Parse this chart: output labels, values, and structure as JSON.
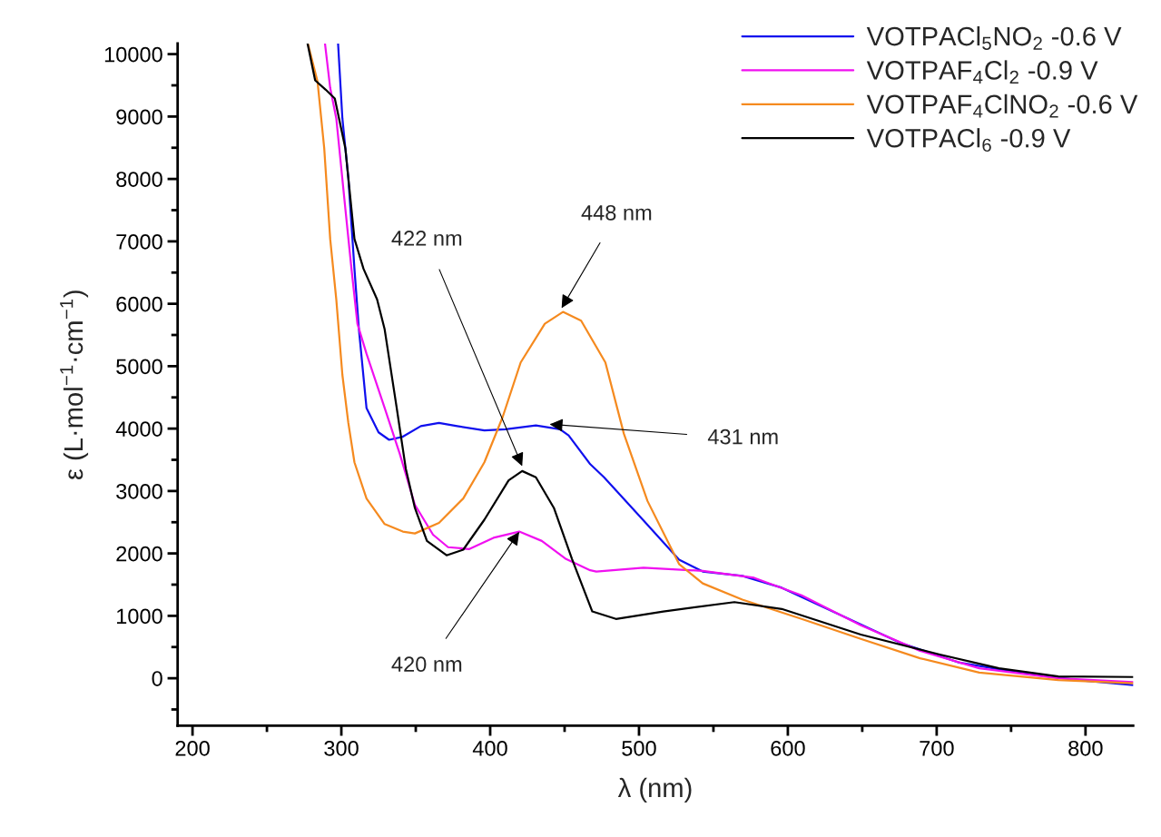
{
  "chart_data": {
    "type": "line",
    "xlabel": "λ (nm)",
    "ylabel": "ε (L·mol$^{−1}$·cm$^{−1}$)",
    "xlim": [
      190,
      832
    ],
    "ylim": [
      -760,
      10170
    ],
    "xticks": [
      200,
      300,
      400,
      500,
      600,
      700,
      800
    ],
    "yticks": [
      0,
      1000,
      2000,
      3000,
      4000,
      5000,
      6000,
      7000,
      8000,
      9000,
      10000
    ],
    "grid": false,
    "legend": "top right",
    "line_style": "solid",
    "marker": "none",
    "series": [
      {
        "name": "VOTPACl$_{5}$NO$_{2}$ -0.6 V",
        "color": "#1010ee",
        "x": [
          297.8,
          300.7,
          304.7,
          308.8,
          311.8,
          316.9,
          325.0,
          332.1,
          341.3,
          353.4,
          365.6,
          377.8,
          396.1,
          410.4,
          430.7,
          446.9,
          452.7,
          467.2,
          476.5,
          503.0,
          526.9,
          542.8,
          569.4,
          595.9,
          635.7,
          675.5,
          715.3,
          755.1,
          794.9,
          832
        ],
        "values": [
          10170,
          8970,
          8010,
          6560,
          5590,
          4330,
          3940,
          3820,
          3870,
          4040,
          4090,
          4040,
          3970,
          3990,
          4050,
          3990,
          3890,
          3430,
          3220,
          2530,
          1900,
          1710,
          1640,
          1450,
          1010,
          570,
          250,
          90,
          -30,
          -110
        ]
      },
      {
        "name": "VOTPAF$_{4}$Cl$_{2}$ -0.9 V",
        "color": "#f010f0",
        "x": [
          289.0,
          292.5,
          296.6,
          302.7,
          306.8,
          310.8,
          316.9,
          329.1,
          339.2,
          349.4,
          361.6,
          371.7,
          386.0,
          402.2,
          419.5,
          434.7,
          451.0,
          467.2,
          471.3,
          503.0,
          542.8,
          577.3,
          609.2,
          649,
          688.8,
          728.6,
          781.7,
          832
        ],
        "values": [
          10170,
          9460,
          8970,
          7520,
          6560,
          5680,
          5200,
          4330,
          3600,
          2780,
          2300,
          2100,
          2070,
          2250,
          2350,
          2200,
          1910,
          1730,
          1710,
          1770,
          1720,
          1610,
          1330,
          850,
          440,
          160,
          0,
          -60
        ]
      },
      {
        "name": "VOTPAF$_{4}$ClNO$_{2}$ -0.6 V",
        "color": "#f58a1f",
        "x": [
          277.5,
          284.0,
          288.5,
          292.5,
          296.6,
          300.7,
          304.7,
          308.8,
          316.9,
          329.1,
          341.3,
          349.4,
          365.6,
          381.9,
          396.1,
          408.3,
          420.5,
          436.7,
          448.9,
          461.1,
          477.4,
          489.8,
          505.7,
          526.9,
          542.8,
          569.4,
          609.2,
          649,
          688.8,
          728.6,
          781.7,
          832
        ],
        "values": [
          10170,
          9560,
          8490,
          7040,
          6070,
          4860,
          4090,
          3460,
          2880,
          2470,
          2350,
          2320,
          2490,
          2880,
          3460,
          4180,
          5060,
          5680,
          5870,
          5730,
          5060,
          3920,
          2840,
          1830,
          1520,
          1260,
          950,
          630,
          320,
          90,
          -30,
          -80
        ]
      },
      {
        "name": "VOTPACl$_{6}$ -0.9 V",
        "color": "#000000",
        "x": [
          277.3,
          282.4,
          289.5,
          295.6,
          302.7,
          308.8,
          314.9,
          324.0,
          329.1,
          337.2,
          343.3,
          349.4,
          357.5,
          370.7,
          381.9,
          396.1,
          412.4,
          421.5,
          430.7,
          442.8,
          455.0,
          468.6,
          484.5,
          516.3,
          564.1,
          595.9,
          649,
          702.1,
          741.8,
          781.7,
          832
        ],
        "values": [
          10170,
          9580,
          9430,
          9290,
          8490,
          7040,
          6560,
          6070,
          5590,
          4330,
          3360,
          2730,
          2200,
          1970,
          2060,
          2540,
          3170,
          3320,
          3220,
          2730,
          1910,
          1070,
          950,
          1070,
          1220,
          1110,
          700,
          380,
          160,
          30,
          20
        ]
      }
    ],
    "annotations": [
      {
        "text": "422 nm",
        "x": 421.5,
        "y": 3400
      },
      {
        "text": "448 nm",
        "x": 448,
        "y": 5930
      },
      {
        "text": "431 nm",
        "x": 440,
        "y": 4070
      },
      {
        "text": "420 nm",
        "x": 419.5,
        "y": 2345
      }
    ]
  }
}
